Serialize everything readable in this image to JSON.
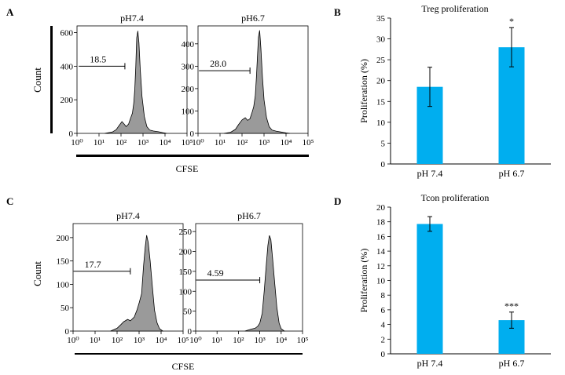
{
  "colors": {
    "bar": "#00AEEF",
    "histogram": "#9a9a9a",
    "axis": "#000000"
  },
  "panels": {
    "A": {
      "letter": "A",
      "ylabel": "Count",
      "xlabel": "CFSE"
    },
    "B": {
      "letter": "B"
    },
    "C": {
      "letter": "C",
      "ylabel": "Count",
      "xlabel": "CFSE"
    },
    "D": {
      "letter": "D"
    }
  },
  "chart_data": [
    {
      "panel": "A-left",
      "type": "area",
      "title": "pH7.4",
      "xlabel": "",
      "ylabel": "",
      "x_log": true,
      "xlim": [
        1,
        100000
      ],
      "ylim": [
        0,
        640
      ],
      "yticks": [
        0,
        200,
        400,
        600
      ],
      "xticks": [
        "10⁰",
        "10¹",
        "10²",
        "10³",
        "10⁴",
        "10⁵"
      ],
      "gate_label": "18.5",
      "gate_range": [
        1.2,
        150
      ],
      "gate_level": 400,
      "x": [
        18,
        40,
        60,
        80,
        110,
        140,
        170,
        220,
        280,
        330,
        380,
        420,
        470,
        520,
        580,
        650,
        750,
        900,
        1150,
        1500,
        2000,
        3000,
        5000,
        8000,
        12000
      ],
      "y": [
        0,
        8,
        22,
        45,
        70,
        55,
        40,
        55,
        95,
        120,
        180,
        260,
        400,
        570,
        610,
        540,
        380,
        220,
        100,
        40,
        20,
        14,
        10,
        4,
        0
      ]
    },
    {
      "panel": "A-right",
      "type": "area",
      "title": "pH6.7",
      "xlabel": "",
      "ylabel": "",
      "x_log": true,
      "xlim": [
        1,
        100000
      ],
      "ylim": [
        0,
        480
      ],
      "yticks": [
        0,
        100,
        200,
        300,
        400
      ],
      "xticks": [
        "10⁰",
        "10¹",
        "10²",
        "10³",
        "10⁴",
        "10⁵"
      ],
      "gate_label": "28.0",
      "gate_range": [
        1.1,
        230
      ],
      "gate_level": 280,
      "x": [
        15,
        30,
        50,
        70,
        100,
        140,
        180,
        230,
        290,
        340,
        400,
        450,
        500,
        560,
        630,
        720,
        850,
        1000,
        1300,
        1700,
        2300,
        3500,
        6000,
        10000,
        15000
      ],
      "y": [
        0,
        5,
        18,
        40,
        60,
        70,
        58,
        65,
        95,
        120,
        170,
        250,
        340,
        430,
        460,
        380,
        250,
        150,
        70,
        30,
        15,
        10,
        6,
        2,
        0
      ]
    },
    {
      "panel": "C-left",
      "type": "area",
      "title": "pH7.4",
      "xlabel": "",
      "ylabel": "",
      "x_log": true,
      "xlim": [
        1,
        100000
      ],
      "ylim": [
        0,
        230
      ],
      "yticks": [
        0,
        50,
        100,
        150,
        200
      ],
      "xticks": [
        "10⁰",
        "10¹",
        "10²",
        "10³",
        "10⁴",
        "10⁵"
      ],
      "gate_label": "17.7",
      "gate_range": [
        1.05,
        400
      ],
      "gate_level": 128,
      "x": [
        50,
        100,
        150,
        200,
        300,
        400,
        600,
        800,
        1000,
        1300,
        1600,
        1900,
        2200,
        2600,
        3200,
        4000,
        5000,
        6500,
        8500,
        12000
      ],
      "y": [
        0,
        6,
        14,
        20,
        25,
        22,
        30,
        45,
        60,
        80,
        140,
        180,
        205,
        190,
        150,
        95,
        45,
        18,
        5,
        0
      ]
    },
    {
      "panel": "C-right",
      "type": "area",
      "title": "pH6.7",
      "xlabel": "",
      "ylabel": "",
      "x_log": true,
      "xlim": [
        1,
        100000
      ],
      "ylim": [
        0,
        270
      ],
      "yticks": [
        0,
        50,
        100,
        150,
        200,
        250
      ],
      "xticks": [
        "10⁰",
        "10¹",
        "10²",
        "10³",
        "10⁴",
        "10⁵"
      ],
      "gate_label": "4.59",
      "gate_range": [
        1.05,
        1000
      ],
      "gate_level": 128,
      "x": [
        200,
        400,
        600,
        800,
        1000,
        1300,
        1600,
        2000,
        2400,
        2800,
        3300,
        4000,
        5000,
        6300,
        8000,
        10000,
        14000
      ],
      "y": [
        0,
        5,
        7,
        12,
        20,
        45,
        100,
        165,
        215,
        240,
        230,
        180,
        120,
        60,
        20,
        6,
        0
      ]
    },
    {
      "panel": "B",
      "type": "bar",
      "title": "Treg proliferation",
      "xlabel": "",
      "ylabel": "Proliferation (%)",
      "categories": [
        "pH 7.4",
        "pH 6.7"
      ],
      "values": [
        18.5,
        28.0
      ],
      "errors": [
        4.7,
        4.7
      ],
      "annotations": [
        "",
        "*"
      ],
      "ylim": [
        0,
        35
      ],
      "yticks": [
        0,
        5,
        10,
        15,
        20,
        25,
        30,
        35
      ]
    },
    {
      "panel": "D",
      "type": "bar",
      "title": "Tcon proliferation",
      "xlabel": "",
      "ylabel": "Proliferation (%)",
      "categories": [
        "pH 7.4",
        "pH 6.7"
      ],
      "values": [
        17.7,
        4.59
      ],
      "errors": [
        1.0,
        1.1
      ],
      "annotations": [
        "",
        "***"
      ],
      "ylim": [
        0,
        20
      ],
      "yticks": [
        0,
        2,
        4,
        6,
        8,
        10,
        12,
        14,
        16,
        18,
        20
      ]
    }
  ]
}
